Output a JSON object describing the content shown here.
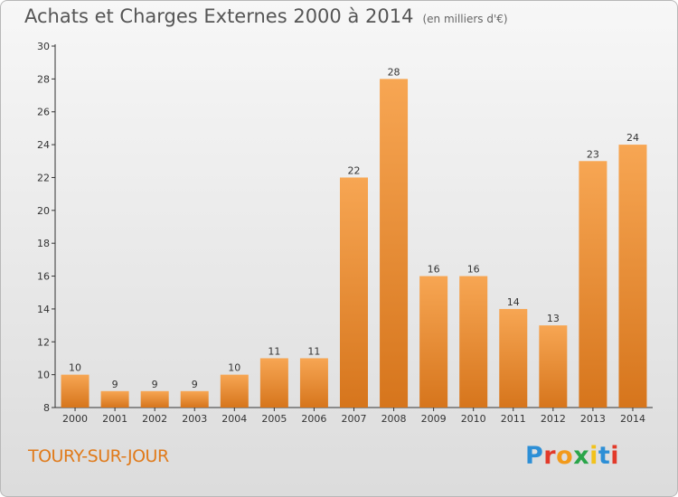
{
  "title": "Achats et Charges Externes 2000 à 2014",
  "subtitle": "(en milliers d'€)",
  "town": "TOURY-SUR-JOUR",
  "logo": "Proxiti",
  "colors": {
    "bar_top": "#f7a653",
    "bar_bottom": "#d6751c",
    "town_text": "#e07a1a"
  },
  "chart_data": {
    "type": "bar",
    "title": "Achats et Charges Externes 2000 à 2014",
    "subtitle": "(en milliers d'€)",
    "categories": [
      "2000",
      "2001",
      "2002",
      "2003",
      "2004",
      "2005",
      "2006",
      "2007",
      "2008",
      "2009",
      "2010",
      "2011",
      "2012",
      "2013",
      "2014"
    ],
    "values": [
      10,
      9,
      9,
      9,
      10,
      11,
      11,
      22,
      28,
      16,
      16,
      14,
      13,
      23,
      24
    ],
    "ylim": [
      8,
      30
    ],
    "yticks": [
      8,
      10,
      12,
      14,
      16,
      18,
      20,
      22,
      24,
      26,
      28,
      30
    ],
    "grid": false,
    "data_labels": true
  }
}
